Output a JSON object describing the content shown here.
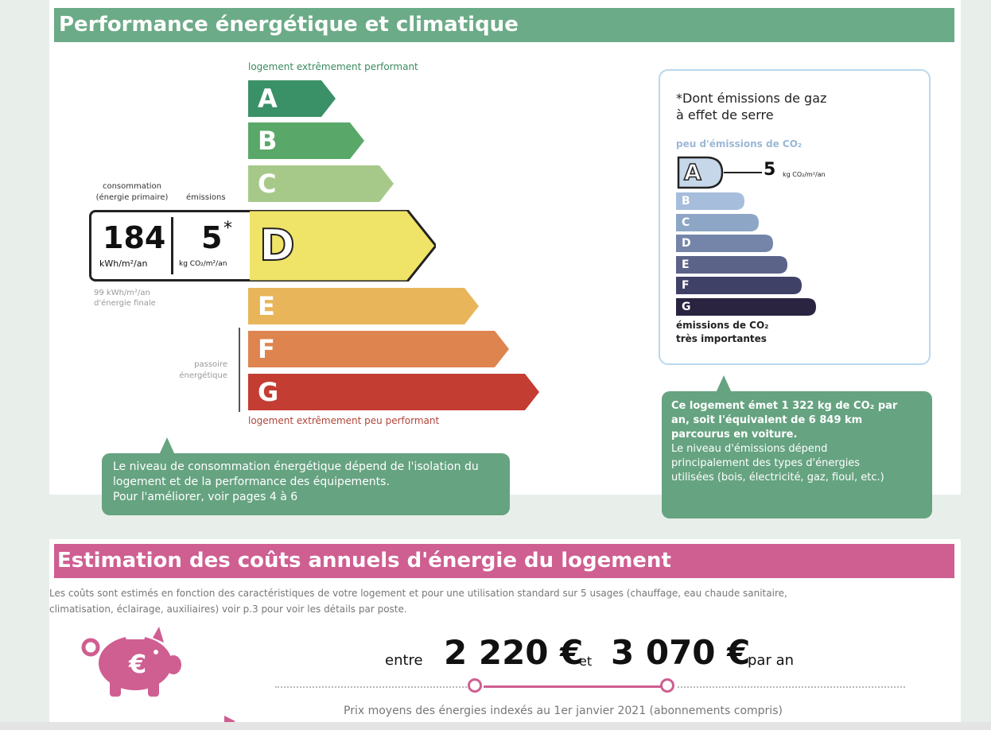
{
  "energy": {
    "title": "Performance énergétique et climatique",
    "top_label": "logement extrêmement performant",
    "bottom_label": "logement extrêmement peu performant",
    "classes": [
      {
        "letter": "A",
        "color": "#3a9167"
      },
      {
        "letter": "B",
        "color": "#5aa869"
      },
      {
        "letter": "C",
        "color": "#a6c98a"
      },
      {
        "letter": "D",
        "color": "#efe368"
      },
      {
        "letter": "E",
        "color": "#e8b55a"
      },
      {
        "letter": "F",
        "color": "#de844f"
      },
      {
        "letter": "G",
        "color": "#c43d33"
      }
    ],
    "current_class": "D",
    "consumption_label_1": "consommation",
    "consumption_label_2": "(énergie primaire)",
    "emissions_label": "émissions",
    "consumption_value": "184",
    "consumption_unit": "kWh/m²/an",
    "emissions_value": "5",
    "emissions_star": "*",
    "emissions_unit": "kg CO₂/m²/an",
    "final_energy_1": "99 kWh/m²/an",
    "final_energy_2": "d'énergie finale",
    "passoire_1": "passoire",
    "passoire_2": "énergétique",
    "callout_1": "Le niveau de consommation énergétique dépend de l'isolation du",
    "callout_2": "logement et de la performance des équipements.",
    "callout_3": "Pour l'améliorer, voir pages 4 à 6"
  },
  "ghg": {
    "title_1": "*Dont émissions de gaz",
    "title_2": "à effet de serre",
    "top_label": "peu d'émissions de CO₂",
    "current_class": "A",
    "value": "5",
    "unit": "kg CO₂/m²/an",
    "classes": [
      {
        "letter": "B",
        "color": "#a6bedb"
      },
      {
        "letter": "C",
        "color": "#8ea6c6"
      },
      {
        "letter": "D",
        "color": "#7585a9"
      },
      {
        "letter": "E",
        "color": "#5b6388"
      },
      {
        "letter": "F",
        "color": "#3f4166"
      },
      {
        "letter": "G",
        "color": "#2a2440"
      }
    ],
    "bottom_label_1": "émissions de CO₂",
    "bottom_label_2": "très importantes",
    "callout_bold_1": "Ce logement émet 1 322 kg de CO₂ par",
    "callout_bold_2": "an, soit l'équivalent de 6 849 km",
    "callout_bold_3": "parcourus en voiture.",
    "callout_1": "Le niveau d'émissions dépend",
    "callout_2": "principalement des types d'énergies",
    "callout_3": "utilisées (bois, électricité, gaz, fioul, etc.)"
  },
  "costs": {
    "title": "Estimation des coûts annuels d'énergie du logement",
    "desc_1": "Les coûts sont estimés en fonction des caractéristiques de votre logement et pour une utilisation standard sur 5 usages (chauffage, eau chaude sanitaire,",
    "desc_2": "climatisation, éclairage, auxiliaires) voir p.3 pour voir les détails par poste.",
    "between": "entre",
    "low": "2 220 €",
    "and": "et",
    "high": "3 070 €",
    "per_year": "par an",
    "footnote": "Prix moyens des énergies indexés au  1er janvier 2021 (abonnements compris)",
    "accent": "#cf5e91"
  }
}
